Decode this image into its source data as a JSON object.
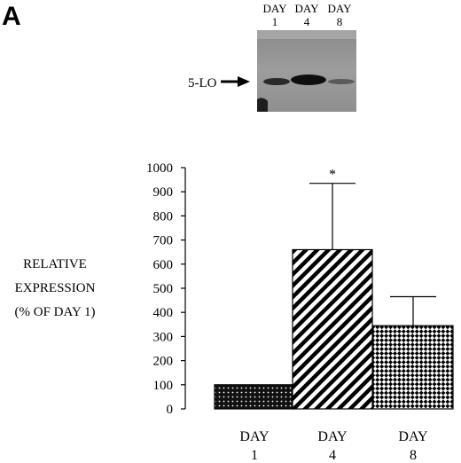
{
  "panel_label": "A",
  "blot": {
    "lanes": [
      {
        "top": "DAY",
        "bottom": "1"
      },
      {
        "top": "DAY",
        "bottom": "4"
      },
      {
        "top": "DAY",
        "bottom": "8"
      }
    ],
    "band_label": "5-LO"
  },
  "chart_data": {
    "type": "bar",
    "ylabel_lines": [
      "RELATIVE",
      "EXPRESSION",
      "(% OF DAY 1)"
    ],
    "categories": [
      {
        "top": "DAY",
        "bottom": "1"
      },
      {
        "top": "DAY",
        "bottom": "4"
      },
      {
        "top": "DAY",
        "bottom": "8"
      }
    ],
    "values": [
      100,
      660,
      345
    ],
    "error_upper": [
      100,
      935,
      465
    ],
    "annotations": [
      "",
      "*",
      ""
    ],
    "bar_patterns": [
      "dotted-dark",
      "diagonal-stripes",
      "diamond-checker"
    ],
    "ylim": [
      0,
      1000
    ],
    "yticks": [
      "0",
      "100",
      "200",
      "300",
      "400",
      "500",
      "600",
      "700",
      "800",
      "900",
      "1000"
    ],
    "grid": false,
    "legend": "none"
  }
}
